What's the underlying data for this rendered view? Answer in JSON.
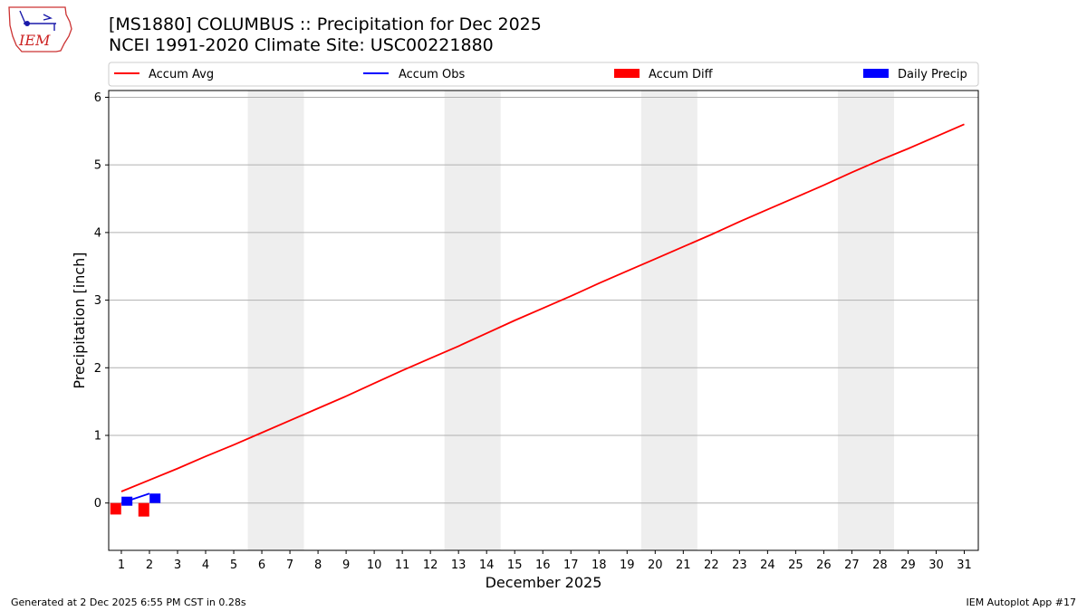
{
  "header": {
    "title_line1": "[MS1880] COLUMBUS :: Precipitation for Dec 2025",
    "title_line2": "NCEI 1991-2020 Climate Site: USC00221880",
    "logo_text": "IEM"
  },
  "footer": {
    "generated": "Generated at 2 Dec 2025 6:55 PM CST in 0.28s",
    "app": "IEM Autoplot App #17"
  },
  "colors": {
    "accum_avg": "#ff0000",
    "accum_obs": "#0000ff",
    "accum_diff": "#ff0000",
    "daily_precip": "#0000ff",
    "weekend_band": "#eeeeee",
    "grid": "#b0b0b0"
  },
  "chart_data": {
    "type": "line",
    "xlabel": "December 2025",
    "ylabel": "Precipitation [inch]",
    "x_ticks": [
      "1",
      "2",
      "3",
      "4",
      "5",
      "6",
      "7",
      "8",
      "9",
      "10",
      "11",
      "12",
      "13",
      "14",
      "15",
      "16",
      "17",
      "18",
      "19",
      "20",
      "21",
      "22",
      "23",
      "24",
      "25",
      "26",
      "27",
      "28",
      "29",
      "30",
      "31"
    ],
    "xlim": [
      0.55,
      31.5
    ],
    "ylim": [
      -0.7,
      6.1
    ],
    "y_ticks": [
      "0",
      "1",
      "2",
      "3",
      "4",
      "5",
      "6"
    ],
    "grid": "y",
    "legend_position": "top",
    "weekend_days": [
      6,
      7,
      13,
      14,
      20,
      21,
      27,
      28
    ],
    "series": [
      {
        "name": "Accum Avg",
        "kind": "line",
        "x": [
          1,
          2,
          3,
          4,
          5,
          6,
          7,
          8,
          9,
          10,
          11,
          12,
          13,
          14,
          15,
          16,
          17,
          18,
          19,
          20,
          21,
          22,
          23,
          24,
          25,
          26,
          27,
          28,
          29,
          30,
          31
        ],
        "values": [
          0.17,
          0.34,
          0.51,
          0.69,
          0.86,
          1.04,
          1.22,
          1.4,
          1.58,
          1.77,
          1.96,
          2.14,
          2.32,
          2.51,
          2.7,
          2.88,
          3.06,
          3.25,
          3.43,
          3.61,
          3.79,
          3.97,
          4.16,
          4.34,
          4.52,
          4.7,
          4.89,
          5.07,
          5.24,
          5.42,
          5.6
        ]
      },
      {
        "name": "Accum Obs",
        "kind": "line",
        "x": [
          1,
          2
        ],
        "values": [
          0.0,
          0.14
        ]
      },
      {
        "name": "Accum Diff",
        "kind": "bar",
        "x": [
          1,
          2
        ],
        "values": [
          -0.17,
          -0.2
        ]
      },
      {
        "name": "Daily Precip",
        "kind": "bar",
        "x": [
          1,
          2
        ],
        "values": [
          0.0,
          0.14
        ]
      }
    ]
  }
}
